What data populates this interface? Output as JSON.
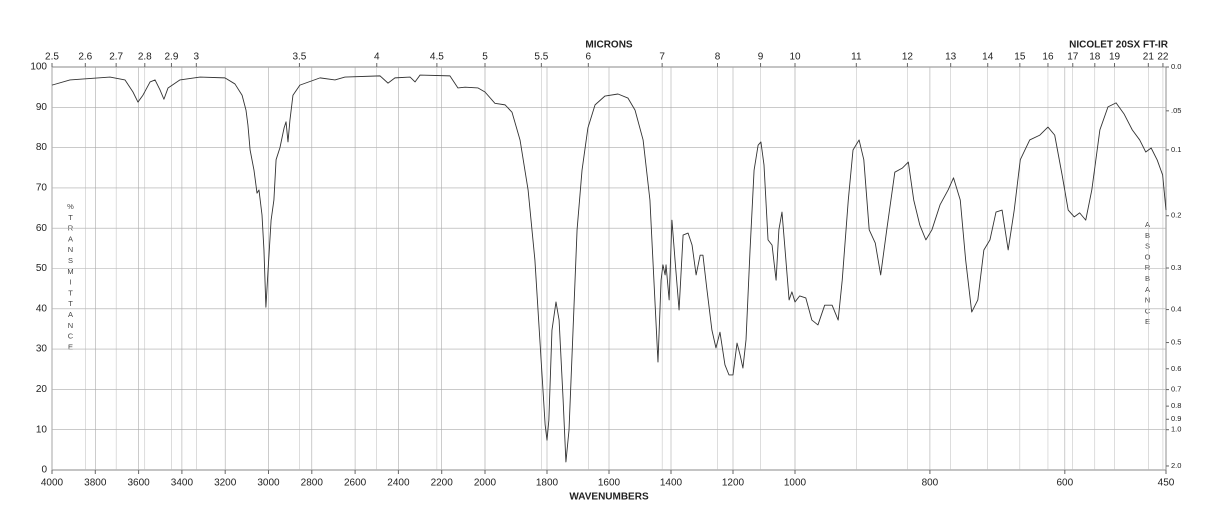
{
  "chart_data": {
    "type": "line",
    "x2label": "MICRONS",
    "annotation": "NICOLET 20SX FT-IR",
    "xlabel": "WAVENUMBERS",
    "ylabel": "%TRANSMITTANCE",
    "y2label": "ABSORBANCE",
    "xlim": [
      4000,
      450
    ],
    "x_scale_breaks": [
      2000,
      1000
    ],
    "xticks": [
      4000,
      3800,
      3600,
      3400,
      3200,
      3000,
      2800,
      2600,
      2400,
      2200,
      2000,
      1800,
      1600,
      1400,
      1200,
      1000,
      800,
      600,
      450
    ],
    "x2ticks": [
      2.5,
      2.6,
      2.7,
      2.8,
      2.9,
      3,
      3.5,
      4,
      4.5,
      5,
      5.5,
      6,
      7,
      8,
      9,
      10,
      11,
      12,
      13,
      14,
      15,
      16,
      17,
      18,
      19,
      21,
      22
    ],
    "ylim": [
      0,
      100
    ],
    "yticks": [
      0,
      10,
      20,
      30,
      40,
      50,
      60,
      70,
      80,
      90,
      100
    ],
    "y2_scale": "absorbance",
    "y2ticks": [
      {
        "value": 0,
        "label": "0.0"
      },
      {
        "value": 0.05,
        "label": ".05"
      },
      0.1,
      0.2,
      0.3,
      0.4,
      0.5,
      0.6,
      0.7,
      0.8,
      0.9,
      {
        "value": 1,
        "label": "1.0"
      },
      {
        "value": 2,
        "label": "2.0"
      }
    ],
    "grid": true,
    "color": "#333333",
    "x": [
      4000,
      3917,
      3732,
      3663,
      3626,
      3603,
      3580,
      3547,
      3524,
      3501,
      3483,
      3464,
      3409,
      3316,
      3201,
      3155,
      3122,
      3104,
      3095,
      3085,
      3067,
      3053,
      3044,
      3030,
      3021,
      3012,
      3002,
      2988,
      2975,
      2965,
      2947,
      2928,
      2919,
      2910,
      2901,
      2887,
      2855,
      2762,
      2693,
      2647,
      2485,
      2448,
      2416,
      2346,
      2323,
      2300,
      2162,
      2125,
      2092,
      2032,
      2000,
      1968,
      1935,
      1913,
      1887,
      1861,
      1839,
      1819,
      1806,
      1800,
      1794,
      1784,
      1771,
      1761,
      1748,
      1739,
      1729,
      1716,
      1703,
      1687,
      1668,
      1645,
      1613,
      1571,
      1539,
      1516,
      1490,
      1468,
      1452,
      1442,
      1432,
      1426,
      1419,
      1416,
      1406,
      1397,
      1387,
      1374,
      1361,
      1345,
      1332,
      1319,
      1306,
      1297,
      1284,
      1268,
      1255,
      1242,
      1226,
      1213,
      1200,
      1187,
      1177,
      1168,
      1158,
      1145,
      1132,
      1119,
      1110,
      1100,
      1087,
      1074,
      1061,
      1052,
      1042,
      1032,
      1019,
      1010,
      1000,
      993,
      984,
      975,
      966,
      956,
      945,
      936,
      930,
      921,
      914,
      905,
      898,
      890,
      881,
      873,
      864,
      852,
      841,
      832,
      824,
      815,
      806,
      797,
      785,
      773,
      765,
      755,
      747,
      738,
      729,
      720,
      711,
      702,
      693,
      684,
      675,
      666,
      652,
      637,
      625,
      615,
      604,
      595,
      586,
      578,
      569,
      560,
      548,
      536,
      524,
      512,
      500,
      489,
      480,
      472,
      463,
      455,
      450
    ],
    "values": [
      95.5,
      96.8,
      97.5,
      96.8,
      93.8,
      91.3,
      93,
      96.3,
      96.8,
      94.3,
      92,
      94.8,
      96.8,
      97.5,
      97.3,
      95.8,
      93,
      89.3,
      85.6,
      79.4,
      74.4,
      68.7,
      69.5,
      63.3,
      54.6,
      40.4,
      49.6,
      62,
      67,
      77,
      80,
      84.9,
      86.4,
      81.4,
      86.8,
      93,
      95.5,
      97.3,
      96.8,
      97.5,
      97.8,
      96,
      97.3,
      97.5,
      96.3,
      98,
      97.8,
      94.8,
      95,
      94.8,
      93.8,
      91,
      90.6,
      88.8,
      81.9,
      69.5,
      52.1,
      27.3,
      11.2,
      7.4,
      12.4,
      34.7,
      41.7,
      37.2,
      17.4,
      2,
      9.9,
      34.7,
      59.6,
      74.4,
      84.9,
      90.6,
      92.8,
      93.3,
      92.3,
      89.3,
      81.9,
      67,
      42.2,
      26.8,
      47.1,
      50.9,
      48.4,
      50.9,
      42.2,
      62,
      52.1,
      39.7,
      58.3,
      58.8,
      55.8,
      48.4,
      53.3,
      53.3,
      44.7,
      34.7,
      30.3,
      34.2,
      26.1,
      23.6,
      23.6,
      31.5,
      28.5,
      25.3,
      32.3,
      54.6,
      74.4,
      80.6,
      81.4,
      75.7,
      57.1,
      55.8,
      47.1,
      59.6,
      64,
      54.6,
      42.2,
      44.2,
      41.7,
      43.2,
      42.7,
      37.2,
      36,
      40.9,
      40.9,
      37.2,
      47.1,
      67,
      79.4,
      81.9,
      77,
      59.6,
      56.3,
      48.4,
      59.6,
      73.9,
      74.9,
      76.4,
      67,
      60.8,
      57.1,
      59.6,
      65.8,
      69.5,
      72.5,
      67,
      52.1,
      39.2,
      42.2,
      54.6,
      57.1,
      64,
      64.5,
      54.6,
      64.5,
      77,
      81.9,
      83.1,
      85.1,
      83.1,
      73.2,
      64.5,
      62.8,
      63.8,
      62,
      69.5,
      84.4,
      90.1,
      91.1,
      88.3,
      84.4,
      81.9,
      78.9,
      79.9,
      76.9,
      73.2,
      64.5
    ]
  }
}
